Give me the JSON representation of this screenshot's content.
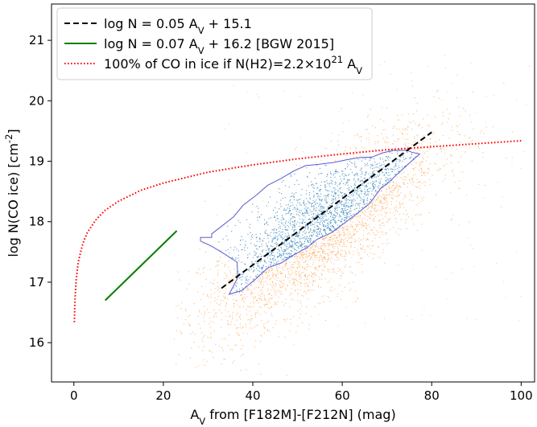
{
  "chart_data": {
    "type": "scatter",
    "title": "",
    "xlabel": "A_V from [F182M]-[F212N] (mag)",
    "ylabel": "log N(CO ice) [cm^-2]",
    "xlim": [
      -5,
      103
    ],
    "ylim": [
      15.35,
      21.6
    ],
    "x_ticks": [
      0,
      20,
      40,
      60,
      80,
      100
    ],
    "y_ticks": [
      16,
      17,
      18,
      19,
      20,
      21
    ],
    "grid": false,
    "legend_position": "top-left",
    "series": [
      {
        "name": "log N = 0.05 A_V + 15.1",
        "kind": "line",
        "style": "dashed",
        "color": "#000000",
        "x": [
          33,
          80
        ],
        "y": [
          16.9,
          19.48
        ]
      },
      {
        "name": "log N = 0.07 A_V + 16.2 [BGW 2015]",
        "kind": "line",
        "style": "solid",
        "color": "#008000",
        "x": [
          7,
          23
        ],
        "y": [
          16.7,
          17.85
        ]
      },
      {
        "name": "100% of CO in ice if N(H2)=2.2×10^21 A_V",
        "kind": "line",
        "style": "dotted",
        "color": "#ff0000",
        "x": [
          0.1,
          0.2,
          0.5,
          1,
          2,
          3,
          5,
          7,
          10,
          15,
          20,
          30,
          40,
          50,
          60,
          70,
          80,
          90,
          100
        ],
        "y": [
          16.34,
          16.64,
          17.04,
          17.34,
          17.64,
          17.82,
          18.04,
          18.19,
          18.34,
          18.52,
          18.64,
          18.82,
          18.94,
          19.04,
          19.12,
          19.19,
          19.24,
          19.29,
          19.34
        ]
      },
      {
        "name": "",
        "kind": "scatter",
        "color": "#ff7f0e",
        "description": "dense orange point cloud"
      },
      {
        "name": "",
        "kind": "scatter",
        "color": "#1f77b4",
        "description": "blue points inside contour"
      }
    ],
    "contour": {
      "color": "#5a5ad6",
      "points": [
        [
          28.3,
          17.74
        ],
        [
          30.8,
          17.74
        ],
        [
          30.8,
          17.8
        ],
        [
          32.6,
          17.9
        ],
        [
          35.7,
          18.08
        ],
        [
          37.8,
          18.27
        ],
        [
          40.8,
          18.44
        ],
        [
          43.3,
          18.6
        ],
        [
          46.2,
          18.71
        ],
        [
          49.2,
          18.84
        ],
        [
          51.9,
          18.93
        ],
        [
          54.9,
          18.95
        ],
        [
          58.1,
          18.98
        ],
        [
          60.7,
          19.02
        ],
        [
          63.7,
          19.06
        ],
        [
          66.7,
          19.07
        ],
        [
          69.1,
          19.14
        ],
        [
          71.5,
          19.18
        ],
        [
          74.5,
          19.18
        ],
        [
          75.5,
          19.15
        ],
        [
          77.3,
          19.12
        ],
        [
          74.4,
          18.93
        ],
        [
          71.9,
          18.76
        ],
        [
          70.4,
          18.65
        ],
        [
          68.6,
          18.55
        ],
        [
          66.2,
          18.31
        ],
        [
          63.6,
          18.15
        ],
        [
          60.7,
          17.99
        ],
        [
          57.6,
          17.82
        ],
        [
          54.4,
          17.71
        ],
        [
          52.1,
          17.57
        ],
        [
          48.9,
          17.44
        ],
        [
          46.4,
          17.32
        ],
        [
          43.4,
          17.24
        ],
        [
          40.9,
          17.07
        ],
        [
          37.5,
          16.86
        ],
        [
          34.7,
          16.8
        ],
        [
          36.6,
          17.07
        ],
        [
          36.5,
          17.33
        ],
        [
          33.6,
          17.47
        ],
        [
          30.7,
          17.6
        ],
        [
          28.3,
          17.68
        ]
      ]
    }
  }
}
